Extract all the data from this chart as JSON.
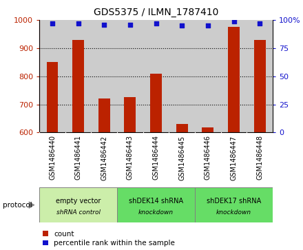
{
  "title": "GDS5375 / ILMN_1787410",
  "samples": [
    "GSM1486440",
    "GSM1486441",
    "GSM1486442",
    "GSM1486443",
    "GSM1486444",
    "GSM1486445",
    "GSM1486446",
    "GSM1486447",
    "GSM1486448"
  ],
  "counts": [
    850,
    930,
    720,
    725,
    808,
    630,
    617,
    975,
    930
  ],
  "percentiles": [
    97,
    97,
    96,
    96,
    97,
    95,
    95,
    99,
    97
  ],
  "ylim_left": [
    600,
    1000
  ],
  "ylim_right": [
    0,
    100
  ],
  "yticks_left": [
    600,
    700,
    800,
    900,
    1000
  ],
  "yticks_right": [
    0,
    25,
    50,
    75,
    100
  ],
  "bar_color": "#bb2200",
  "dot_color": "#1111cc",
  "groups": [
    {
      "label": "empty vector\nshRNA control",
      "start": 0,
      "end": 3,
      "color": "#cceeaa"
    },
    {
      "label": "shDEK14 shRNA\nknockdown",
      "start": 3,
      "end": 6,
      "color": "#66dd66"
    },
    {
      "label": "shDEK17 shRNA\nknockdown",
      "start": 6,
      "end": 9,
      "color": "#66dd66"
    }
  ],
  "protocol_label": "protocol",
  "legend_count_label": "count",
  "legend_pct_label": "percentile rank within the sample",
  "bar_width": 0.45,
  "col_bg": "#cccccc",
  "grid_color": "#000000",
  "title_fontsize": 10,
  "axis_fontsize": 8,
  "label_fontsize": 7
}
